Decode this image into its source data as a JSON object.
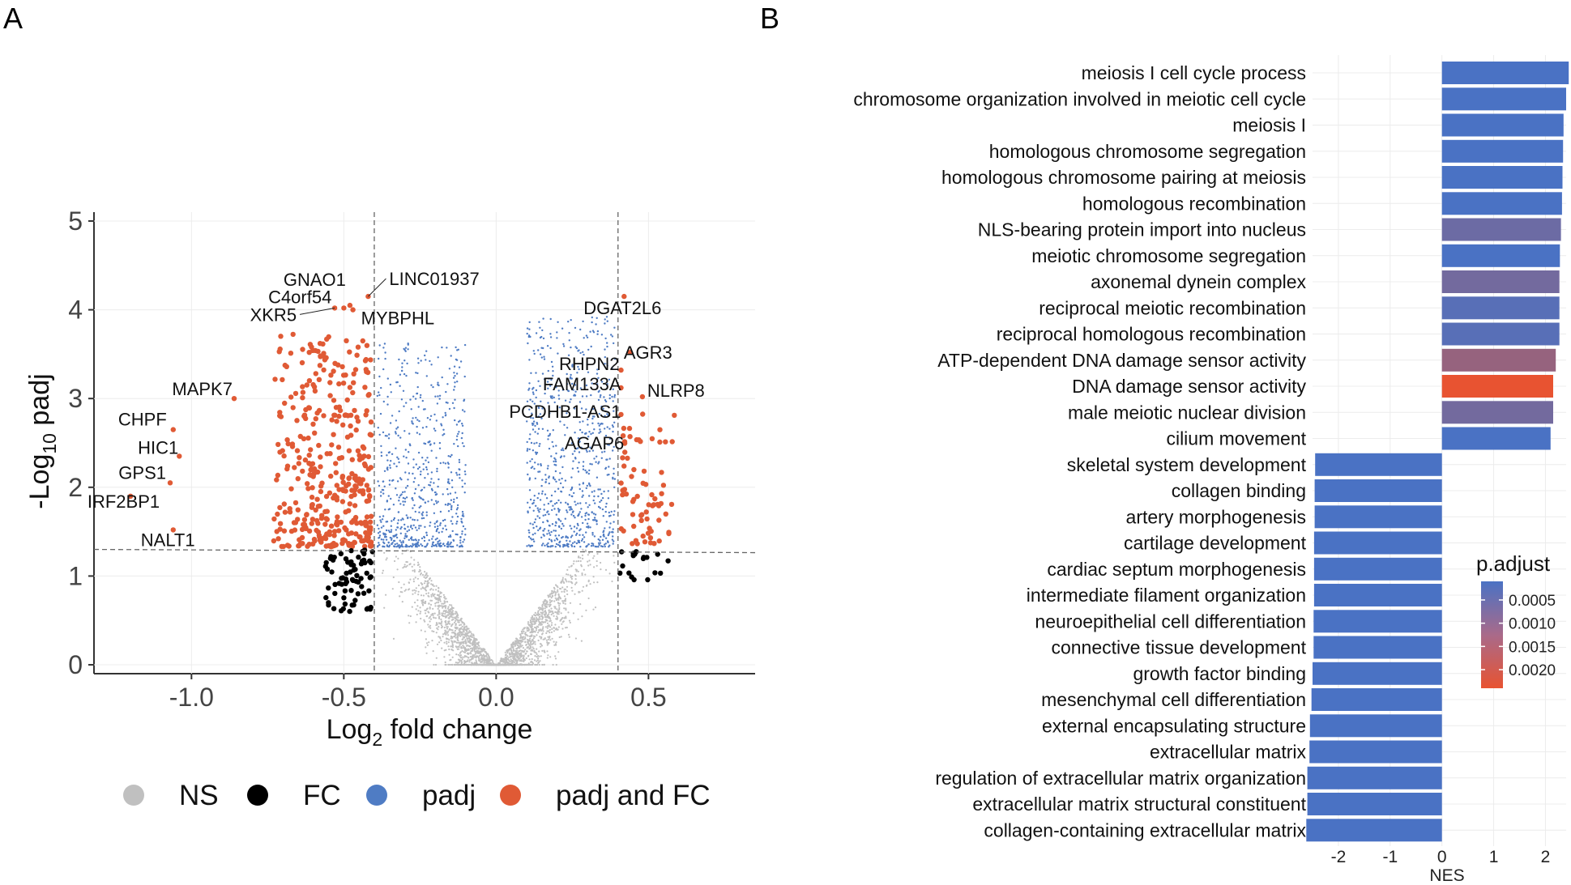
{
  "panel_labels": {
    "a": "A",
    "b": "B"
  },
  "colors": {
    "ns": "#c0c0c0",
    "fc": "#000000",
    "padj": "#4f7cc4",
    "padj_fc": "#e05a35",
    "bar_low": "#4a72c4",
    "bar_high": "#e85331",
    "grid": "#ececec"
  },
  "chart_data": [
    {
      "type": "scatter",
      "title": "",
      "xlabel_prefix": "Log",
      "xlabel_sub": "2",
      "xlabel_suffix": " fold change",
      "ylabel_prefix": "-Log",
      "ylabel_sub": "10",
      "ylabel_suffix": " padj",
      "xlim": [
        -1.32,
        0.85
      ],
      "ylim": [
        -0.1,
        5.1
      ],
      "xticks": [
        -1.0,
        -0.5,
        0.0,
        0.5
      ],
      "xtick_labels": [
        "-1.0",
        "-0.5",
        "0.0",
        "0.5"
      ],
      "yticks": [
        0,
        1,
        2,
        3,
        4,
        5
      ],
      "ytick_labels": [
        "0",
        "1",
        "2",
        "3",
        "4",
        "5"
      ],
      "fc_cutoff": 0.4,
      "padj_cutoff": 1.3,
      "legend": [
        {
          "key": "ns",
          "label": "NS"
        },
        {
          "key": "fc",
          "label": "FC"
        },
        {
          "key": "padj",
          "label": "padj"
        },
        {
          "key": "padj_fc",
          "label": "padj and FC"
        }
      ],
      "labeled_genes": [
        {
          "name": "GNAO1",
          "x": -0.48,
          "y": 4.05
        },
        {
          "name": "C4orf54",
          "x": -0.5,
          "y": 4.02
        },
        {
          "name": "LINC01937",
          "x": -0.42,
          "y": 4.15
        },
        {
          "name": "XKR5",
          "x": -0.53,
          "y": 4.02
        },
        {
          "name": "MYBPHL",
          "x": -0.47,
          "y": 4.0
        },
        {
          "name": "MAPK7",
          "x": -0.86,
          "y": 3.0
        },
        {
          "name": "CHPF",
          "x": -1.06,
          "y": 2.65
        },
        {
          "name": "HIC1",
          "x": -1.04,
          "y": 2.35
        },
        {
          "name": "GPS1",
          "x": -1.07,
          "y": 2.05
        },
        {
          "name": "IRF2BP1",
          "x": -1.2,
          "y": 1.9
        },
        {
          "name": "NALT1",
          "x": -1.06,
          "y": 1.52
        },
        {
          "name": "DGAT2L6",
          "x": 0.42,
          "y": 4.15
        },
        {
          "name": "AGR3",
          "x": 0.44,
          "y": 3.52
        },
        {
          "name": "RHPN2",
          "x": 0.41,
          "y": 3.32
        },
        {
          "name": "NLRP8",
          "x": 0.48,
          "y": 3.02
        },
        {
          "name": "FAM133A",
          "x": 0.41,
          "y": 3.12
        },
        {
          "name": "PCDHB1-AS1",
          "x": 0.41,
          "y": 2.82
        },
        {
          "name": "AGAP6",
          "x": 0.42,
          "y": 2.5
        }
      ]
    },
    {
      "type": "bar",
      "orientation": "horizontal",
      "xlabel": "NES",
      "xlim": [
        -2.5,
        2.4
      ],
      "xticks": [
        -2,
        -1,
        0,
        1,
        2
      ],
      "xtick_labels": [
        "-2",
        "-1",
        "0",
        "1",
        "2"
      ],
      "legend_title": "p.adjust",
      "colorbar_ticks": [
        0.0005,
        0.001,
        0.0015,
        0.002
      ],
      "colorbar_tick_labels": [
        "0.0005",
        "0.0010",
        "0.0015",
        "0.0020"
      ],
      "colorbar_range": [
        0.0001,
        0.0024
      ],
      "categories": [
        "meiosis I cell cycle process",
        "chromosome organization involved in meiotic cell cycle",
        "meiosis I",
        "homologous chromosome segregation",
        "homologous chromosome pairing at meiosis",
        "homologous recombination",
        "NLS-bearing protein import into nucleus",
        "meiotic chromosome segregation",
        "axonemal dynein complex",
        "reciprocal meiotic recombination",
        "reciprocal homologous recombination",
        "ATP-dependent DNA damage sensor activity",
        "DNA damage sensor activity",
        "male meiotic nuclear division",
        "cilium movement",
        "skeletal system development",
        "collagen binding",
        "artery morphogenesis",
        "cartilage development",
        "cardiac septum morphogenesis",
        "intermediate filament organization",
        "neuroepithelial cell differentiation",
        "connective tissue development",
        "growth factor binding",
        "mesenchymal cell differentiation",
        "external encapsulating structure",
        "extracellular matrix",
        "regulation of extracellular matrix organization",
        "extracellular matrix structural constituent",
        "collagen-containing extracellular matrix"
      ],
      "values": [
        2.45,
        2.4,
        2.35,
        2.34,
        2.33,
        2.32,
        2.3,
        2.28,
        2.27,
        2.27,
        2.27,
        2.2,
        2.15,
        2.15,
        2.1,
        -2.45,
        -2.46,
        -2.46,
        -2.47,
        -2.47,
        -2.47,
        -2.48,
        -2.48,
        -2.5,
        -2.52,
        -2.55,
        -2.56,
        -2.6,
        -2.6,
        -2.62
      ],
      "p_adjust": [
        0.0001,
        0.0001,
        0.0001,
        0.0001,
        0.0001,
        0.0001,
        0.0006,
        0.0001,
        0.0007,
        0.0003,
        0.0003,
        0.0012,
        0.0024,
        0.0007,
        0.0001,
        0.0001,
        0.0001,
        0.0001,
        0.0001,
        0.0001,
        0.0001,
        0.0001,
        0.0001,
        0.0001,
        0.0001,
        0.0001,
        0.0001,
        0.0001,
        0.0001,
        0.0001
      ]
    }
  ]
}
